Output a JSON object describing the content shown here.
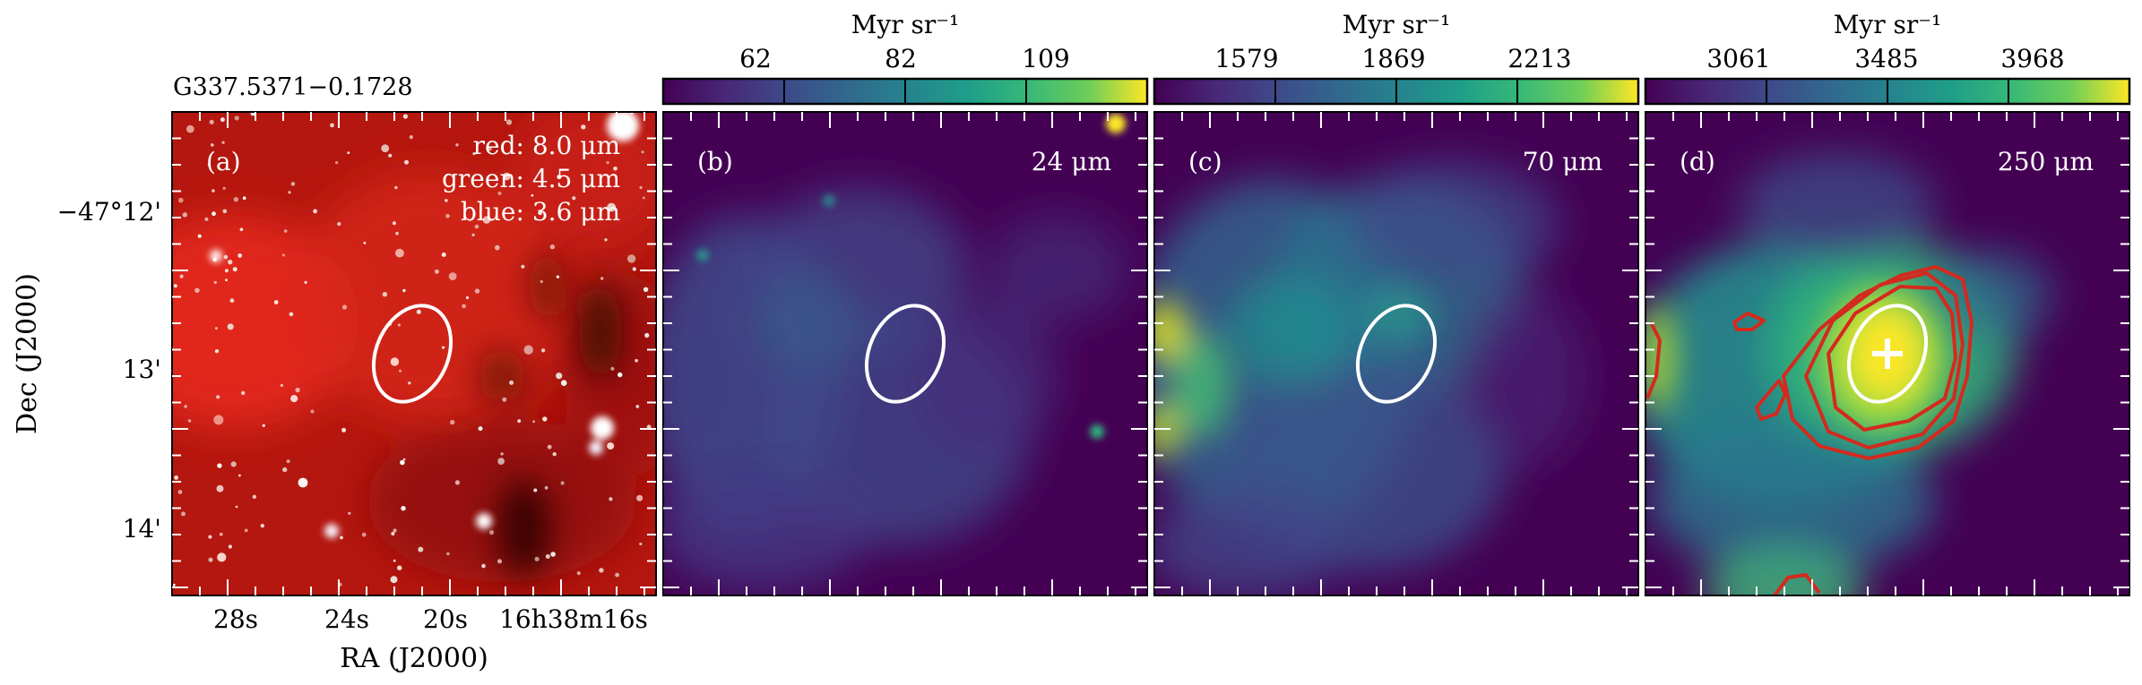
{
  "figure": {
    "source_name": "G337.5371−0.1728",
    "x_axis_label": "RA (J2000)",
    "y_axis_label": "Dec (J2000)",
    "ra_ticks": [
      "28s",
      "24s",
      "20s",
      "16h38m16s"
    ],
    "dec_ticks": [
      "−47°12'",
      "13'",
      "14'"
    ],
    "colors": {
      "ellipse": "#ffffff",
      "contour": "#d42a1e",
      "marker": "#ffffff"
    }
  },
  "panels": [
    {
      "id": "a",
      "label": "(a)",
      "type": "rgb",
      "legend": [
        "red: 8.0 μm",
        "green: 4.5 μm",
        "blue: 3.6 μm"
      ]
    },
    {
      "id": "b",
      "label": "(b)",
      "band": "24 μm",
      "colorbar": {
        "unit": "Myr sr⁻¹",
        "ticks": [
          "62",
          "82",
          "109"
        ]
      }
    },
    {
      "id": "c",
      "label": "(c)",
      "band": "70 μm",
      "colorbar": {
        "unit": "Myr sr⁻¹",
        "ticks": [
          "1579",
          "1869",
          "2213"
        ]
      }
    },
    {
      "id": "d",
      "label": "(d)",
      "band": "250 μm",
      "colorbar": {
        "unit": "Myr sr⁻¹",
        "ticks": [
          "3061",
          "3485",
          "3968"
        ]
      }
    }
  ]
}
